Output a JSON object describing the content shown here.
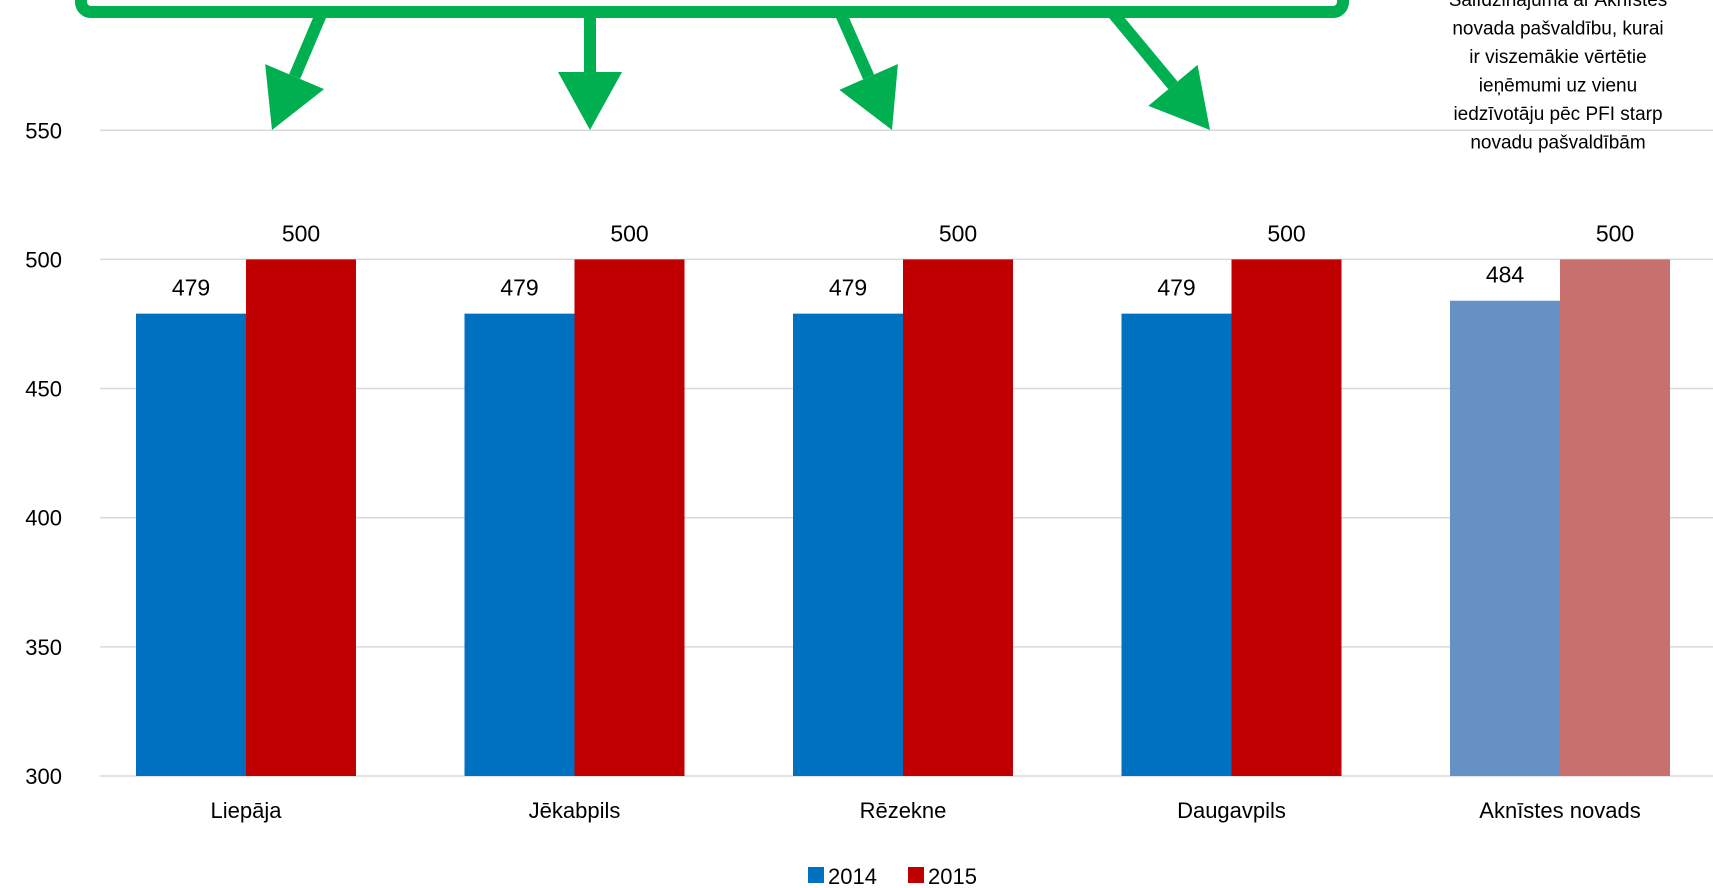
{
  "chart_data": {
    "type": "bar",
    "categories": [
      "Liepāja",
      "Jēkabpils",
      "Rēzekne",
      "Daugavpils",
      "Aknīstes novads"
    ],
    "series": [
      {
        "name": "2014",
        "values": [
          479,
          479,
          479,
          479,
          484
        ],
        "color": "#0070C0",
        "highlight_color": "#6591C5"
      },
      {
        "name": "2015",
        "values": [
          500,
          500,
          500,
          500,
          500
        ],
        "color": "#C00000",
        "highlight_color": "#C8706E"
      }
    ],
    "data_labels": [
      [
        "479",
        "479",
        "479",
        "479",
        "484"
      ],
      [
        "500",
        "500",
        "500",
        "500",
        "500"
      ]
    ],
    "highlighted_category": "Aknīstes novads",
    "ylim": [
      300,
      560
    ],
    "yticks": [
      300,
      350,
      400,
      450,
      500,
      550
    ],
    "ytick_labels": [
      "300",
      "350",
      "400",
      "450",
      "500",
      "550"
    ],
    "grid": true,
    "legend_position": "bottom",
    "annotation": {
      "lines": [
        "Salīdzinājumā ar Aknīstes",
        "novada pašvaldību, kurai",
        "ir viszemākie vērtētie",
        "ieņēmumi uz vienu",
        "iedzīvotāju pēc PFI starp",
        "novadu pašvaldībām"
      ]
    },
    "callout_box_color": "#00B050",
    "arrow_color": "#00B050"
  }
}
